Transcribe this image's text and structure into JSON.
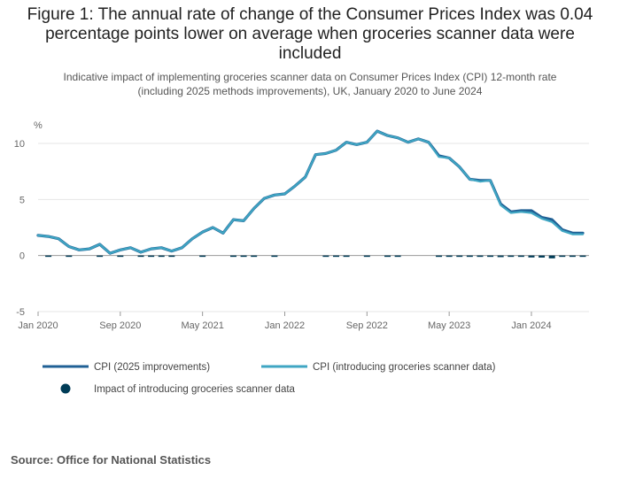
{
  "page": {
    "title_line1": "Figure 1: The annual rate of change of the Consumer Prices Index was 0.04",
    "title_line2": "percentage points lower on average when groceries scanner data were",
    "title_line3": "included",
    "subtitle_line1": "Indicative impact of implementing groceries scanner data on Consumer Prices Index (CPI) 12-month rate",
    "subtitle_line2": "(including 2025 methods improvements), UK, January 2020 to June 2024",
    "source": "Source: Office for National Statistics"
  },
  "chart_data": {
    "type": "line",
    "ylabel": "%",
    "ylim": [
      -5,
      12
    ],
    "yticks": [
      -5,
      0,
      5,
      10
    ],
    "xtick_labels": [
      {
        "label": "Jan 2020",
        "index": 0
      },
      {
        "label": "Sep 2020",
        "index": 8
      },
      {
        "label": "May 2021",
        "index": 16
      },
      {
        "label": "Jan 2022",
        "index": 24
      },
      {
        "label": "Sep 2022",
        "index": 32
      },
      {
        "label": "May 2023",
        "index": 40
      },
      {
        "label": "Jan 2024",
        "index": 48
      }
    ],
    "x": [
      "Jan 2020",
      "Feb 2020",
      "Mar 2020",
      "Apr 2020",
      "May 2020",
      "Jun 2020",
      "Jul 2020",
      "Aug 2020",
      "Sep 2020",
      "Oct 2020",
      "Nov 2020",
      "Dec 2020",
      "Jan 2021",
      "Feb 2021",
      "Mar 2021",
      "Apr 2021",
      "May 2021",
      "Jun 2021",
      "Jul 2021",
      "Aug 2021",
      "Sep 2021",
      "Oct 2021",
      "Nov 2021",
      "Dec 2021",
      "Jan 2022",
      "Feb 2022",
      "Mar 2022",
      "Apr 2022",
      "May 2022",
      "Jun 2022",
      "Jul 2022",
      "Aug 2022",
      "Sep 2022",
      "Oct 2022",
      "Nov 2022",
      "Dec 2022",
      "Jan 2023",
      "Feb 2023",
      "Mar 2023",
      "Apr 2023",
      "May 2023",
      "Jun 2023",
      "Jul 2023",
      "Aug 2023",
      "Sep 2023",
      "Oct 2023",
      "Nov 2023",
      "Dec 2023",
      "Jan 2024",
      "Feb 2024",
      "Mar 2024",
      "Apr 2024",
      "May 2024",
      "Jun 2024"
    ],
    "series": [
      {
        "name": "CPI (2025 improvements)",
        "color": "#206095",
        "values": [
          1.8,
          1.7,
          1.5,
          0.8,
          0.5,
          0.6,
          1.0,
          0.2,
          0.5,
          0.7,
          0.3,
          0.6,
          0.7,
          0.4,
          0.7,
          1.5,
          2.1,
          2.5,
          2.0,
          3.2,
          3.1,
          4.2,
          5.1,
          5.4,
          5.5,
          6.2,
          7.0,
          9.0,
          9.1,
          9.4,
          10.1,
          9.9,
          10.1,
          11.1,
          10.7,
          10.5,
          10.1,
          10.4,
          10.1,
          8.9,
          8.7,
          7.9,
          6.8,
          6.7,
          6.7,
          4.6,
          3.9,
          4.0,
          4.0,
          3.4,
          3.2,
          2.3,
          2.0,
          2.0
        ]
      },
      {
        "name": "CPI (introducing groceries scanner data)",
        "color": "#3fa6c3",
        "values": [
          1.8,
          1.7,
          1.5,
          0.8,
          0.5,
          0.6,
          1.0,
          0.2,
          0.5,
          0.7,
          0.3,
          0.6,
          0.7,
          0.4,
          0.7,
          1.5,
          2.1,
          2.5,
          2.0,
          3.2,
          3.1,
          4.2,
          5.1,
          5.4,
          5.5,
          6.2,
          7.0,
          9.0,
          9.1,
          9.4,
          10.1,
          9.9,
          10.1,
          11.1,
          10.7,
          10.5,
          10.1,
          10.4,
          10.1,
          8.8,
          8.7,
          7.9,
          6.8,
          6.6,
          6.7,
          4.5,
          3.8,
          3.9,
          3.8,
          3.3,
          3.0,
          2.2,
          1.9,
          1.9
        ]
      },
      {
        "name": "Impact of introducing groceries scanner data",
        "color": "#003c57",
        "values": [
          0.0,
          -0.06,
          0.0,
          -0.05,
          0.0,
          0.0,
          -0.02,
          0.0,
          -0.05,
          0.0,
          -0.06,
          -0.03,
          -0.04,
          -0.05,
          0.0,
          0.0,
          -0.04,
          0.0,
          0.0,
          -0.03,
          -0.04,
          -0.03,
          0.0,
          -0.04,
          0.0,
          0.0,
          0.0,
          0.0,
          -0.05,
          -0.04,
          -0.05,
          0.0,
          -0.04,
          0.0,
          -0.05,
          -0.04,
          0.0,
          0.0,
          0.0,
          -0.12,
          -0.1,
          -0.08,
          -0.08,
          -0.1,
          -0.1,
          -0.14,
          -0.1,
          -0.1,
          -0.17,
          -0.18,
          -0.25,
          -0.1,
          -0.1,
          -0.08
        ]
      }
    ],
    "legend_position": "bottom",
    "grid": true
  },
  "legend": {
    "item1": "CPI (2025 improvements)",
    "item2": "CPI (introducing groceries scanner data)",
    "item3": "Impact of introducing groceries scanner data"
  },
  "colors": {
    "series1": "#206095",
    "series2": "#3fa6c3",
    "series3": "#003c57",
    "grid": "#e6e6e6",
    "zero_line": "#999999"
  }
}
